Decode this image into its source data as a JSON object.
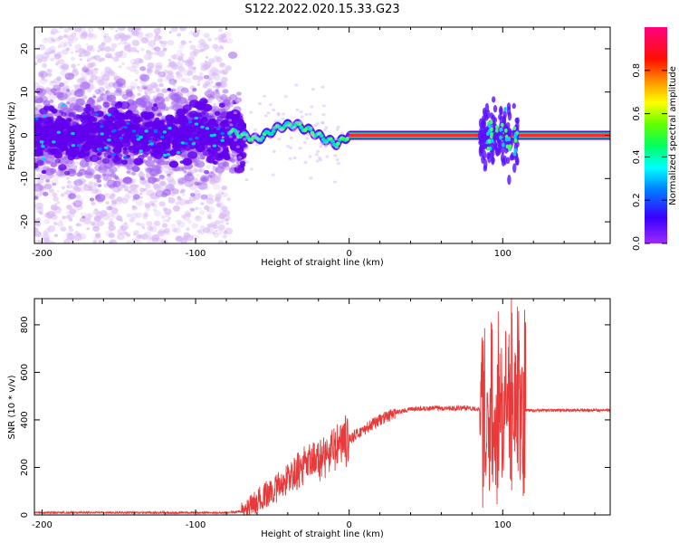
{
  "title": "S122.2022.020.15.33.G23",
  "colors": {
    "snr_line": "#e83a3a",
    "steady_band_outer": "#6a00ff",
    "steady_band_mid": "#00e08a",
    "steady_band_core": "#ff2a2a",
    "scatter_light": "#d9b8f7",
    "scatter_dark": "#6200ee"
  },
  "colormap": "hsv-like normalized spectral amplitude (purple -> blue -> cyan -> green -> yellow -> red -> magenta)",
  "chart_data": [
    {
      "type": "heatmap",
      "xlabel": "Height of straight line (km)",
      "ylabel": "Frequency (Hz)",
      "xlim": [
        -205,
        170
      ],
      "ylim": [
        -25,
        25
      ],
      "x_ticks": [
        -200,
        -100,
        0,
        100
      ],
      "y_ticks": [
        -20,
        -10,
        0,
        10,
        20
      ],
      "colorbar": {
        "label": "Normalized spectral amplitude",
        "range": [
          0.0,
          1.0
        ],
        "ticks": [
          0.0,
          0.2,
          0.4,
          0.6,
          0.8
        ]
      },
      "features": {
        "noise_region_x": [
          -205,
          -78
        ],
        "noise_core_freq_spread": 8,
        "wandering_track": {
          "x": [
            -78,
            -60,
            -45,
            -35,
            -25,
            -15,
            -8,
            0
          ],
          "freq": [
            1,
            -1,
            2,
            2.5,
            1,
            -1,
            -2,
            0
          ]
        },
        "steady_carrier_freq": 0,
        "steady_carrier_x": [
          0,
          170
        ],
        "disturbance_x": [
          85,
          110
        ]
      }
    },
    {
      "type": "line",
      "xlabel": "Height of straight line (km)",
      "ylabel": "SNR (10 * v/v)",
      "xlim": [
        -205,
        170
      ],
      "ylim": [
        0,
        910
      ],
      "x_ticks": [
        -200,
        -100,
        0,
        100
      ],
      "y_ticks": [
        0,
        200,
        400,
        600,
        800
      ],
      "series": [
        {
          "x": [
            -205,
            -150,
            -100,
            -80,
            -68,
            -60,
            -50,
            -40,
            -30,
            -20,
            -10,
            0,
            10,
            20,
            30,
            40,
            60,
            80,
            90,
            95,
            100,
            105,
            110,
            115,
            130,
            150,
            170
          ],
          "y": [
            10,
            10,
            10,
            10,
            15,
            60,
            100,
            150,
            200,
            230,
            280,
            320,
            360,
            400,
            430,
            445,
            450,
            450,
            440,
            460,
            480,
            500,
            450,
            440,
            440,
            440,
            440
          ]
        }
      ]
    }
  ]
}
